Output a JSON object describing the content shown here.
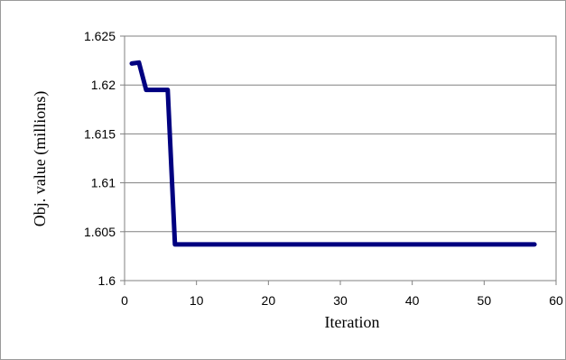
{
  "chart_data": {
    "type": "line",
    "title": "",
    "xlabel": "Iteration",
    "ylabel": "Obj. value (millions)",
    "xlim": [
      0,
      60
    ],
    "ylim": [
      1.6,
      1.625
    ],
    "x_ticks": [
      "0",
      "10",
      "20",
      "30",
      "40",
      "50",
      "60"
    ],
    "y_ticks": [
      "1.625",
      "1.62",
      "1.615",
      "1.61",
      "1.605",
      "1.6"
    ],
    "grid": {
      "horizontal": true,
      "vertical": false
    },
    "legend": "none",
    "series": [
      {
        "color": "#000080",
        "x": [
          1,
          2,
          3,
          4,
          5,
          6,
          7,
          8,
          57
        ],
        "y": [
          1.6222,
          1.6223,
          1.6195,
          1.6195,
          1.6195,
          1.6195,
          1.6037,
          1.6037,
          1.6037
        ]
      }
    ]
  }
}
